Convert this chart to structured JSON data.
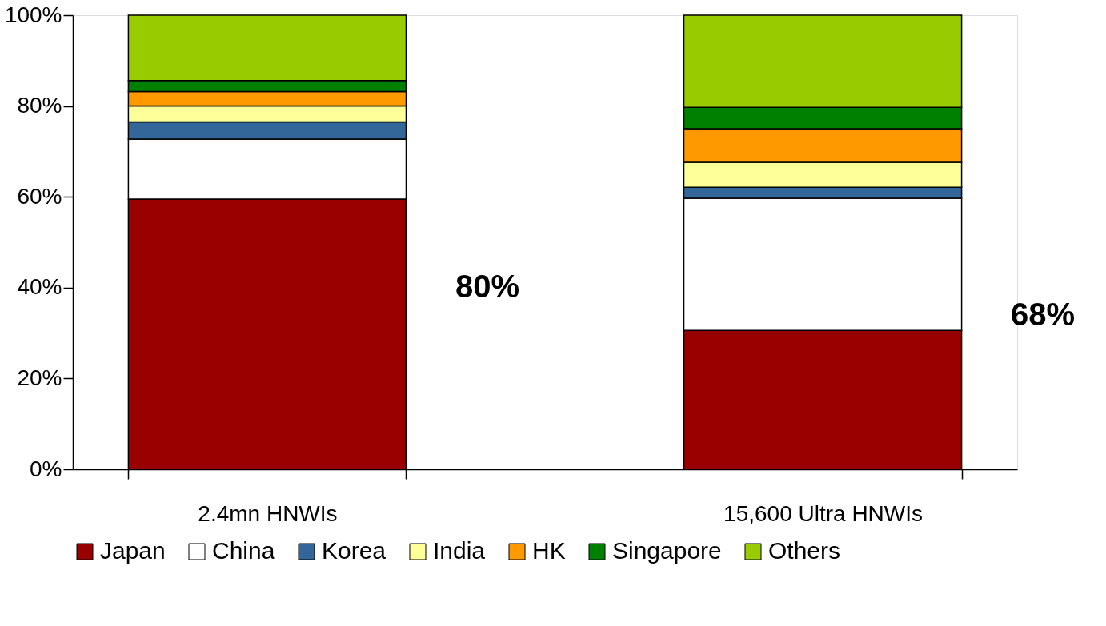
{
  "chart_data": {
    "type": "bar",
    "stacked": true,
    "categories": [
      "2.4mn HNWIs",
      "15,600 Ultra HNWIs"
    ],
    "series": [
      {
        "name": "Japan",
        "color": "#990000",
        "values": [
          59.5,
          30.6
        ]
      },
      {
        "name": "China",
        "color": "#ffffff",
        "values": [
          13.2,
          29.1
        ]
      },
      {
        "name": "Korea",
        "color": "#336699",
        "values": [
          3.8,
          2.4
        ]
      },
      {
        "name": "India",
        "color": "#ffff99",
        "values": [
          3.5,
          5.5
        ]
      },
      {
        "name": "HK",
        "color": "#ff9900",
        "values": [
          3.2,
          7.4
        ]
      },
      {
        "name": "Singapore",
        "color": "#008000",
        "values": [
          2.4,
          4.7
        ]
      },
      {
        "name": "Others",
        "color": "#99cc00",
        "values": [
          14.4,
          20.3
        ]
      }
    ],
    "ylim": [
      0,
      100
    ],
    "yticks": [
      {
        "value": 0,
        "label": "0%"
      },
      {
        "value": 20,
        "label": "20%"
      },
      {
        "value": 40,
        "label": "40%"
      },
      {
        "value": 60,
        "label": "60%"
      },
      {
        "value": 80,
        "label": "80%"
      },
      {
        "value": 100,
        "label": "100%"
      }
    ],
    "annotations": [
      "80%",
      "68%"
    ],
    "grid": false,
    "legend": "bottom"
  }
}
